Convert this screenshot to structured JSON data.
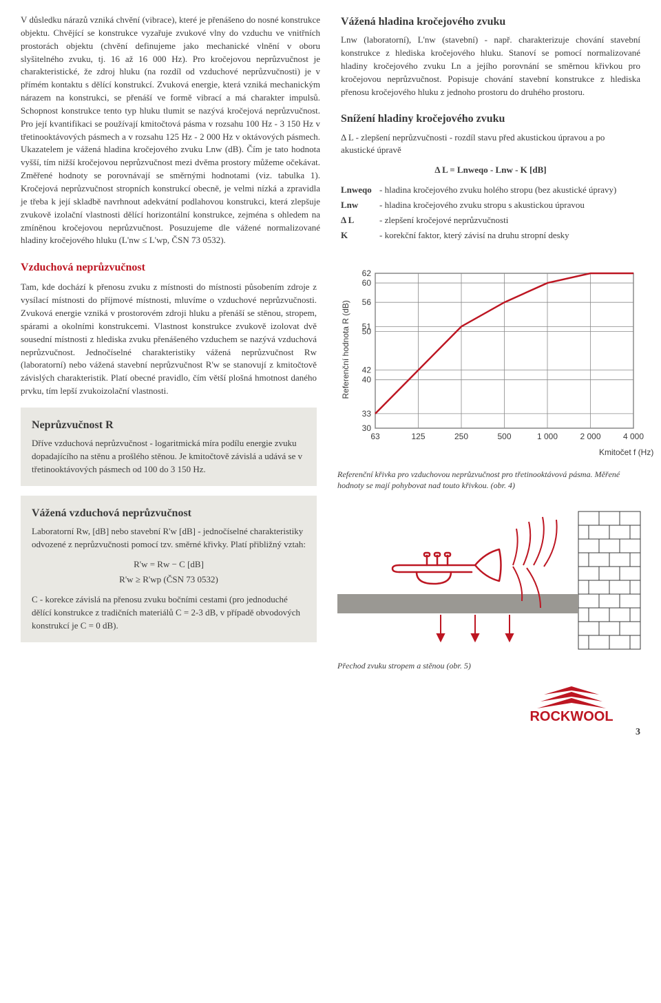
{
  "top_left_para": "V důsledku nárazů vzniká chvění (vibrace), které je přenášeno do nosné konstrukce objektu. Chvějící se konstrukce vyzařuje zvukové vlny do vzduchu ve vnitřních prostorách objektu (chvění definujeme jako mechanické vlnění v oboru slyšitelného zvuku, tj. 16 až 16 000 Hz). Pro kročejovou neprůzvučnost je charakteristické, že zdroj hluku (na rozdíl od vzduchové neprůzvučnosti) je v přímém kontaktu s dělící konstrukcí. Zvuková energie, která vzniká mechanickým nárazem na konstrukci, se přenáší ve formě vibrací a má charakter impulsů. Schopnost konstrukce tento typ hluku tlumit se nazývá kročejová neprůzvučnost. Pro její kvantifikaci se používají kmitočtová pásma v rozsahu 100 Hz - 3 150 Hz v třetinooktávových pásmech a v rozsahu 125 Hz - 2 000 Hz v oktávových pásmech. Ukazatelem je vážená hladina kročejového zvuku Lnw (dB). Čím je tato hodnota vyšší, tím nižší kročejovou neprůzvučnost mezi dvěma prostory můžeme očekávat. Změřené hodnoty se porovnávají se směrnými hodnotami (viz. tabulka 1). Kročejová neprůzvučnost stropních konstrukcí obecně, je velmi nízká a zpravidla je třeba k její skladbě navrhnout adekvátní podlahovou konstrukci, která zlepšuje zvukově izolační vlastnosti dělící horizontální konstrukce, zejména s ohledem na zmíněnou kročejovou neprůzvučnost. Posuzujeme dle vážené normalizované hladiny kročejového hluku (L'nw ≤ L'wp, ČSN 73 0532).",
  "vhkz": {
    "title": "Vážená hladina kročejového zvuku",
    "body": "Lnw (laboratorní), L'nw (stavební) - např. charakterizuje chování stavební konstrukce z hlediska kročejového hluku. Stanoví se pomocí normalizované hladiny kročejového zvuku Ln a jejího porovnání se směrnou křivkou pro kročejovou neprůzvučnost. Popisuje chování stavební konstrukce z hlediska přenosu kročejového hluku z jednoho prostoru do druhého prostoru."
  },
  "shkz": {
    "title": "Snížení hladiny kročejového zvuku",
    "intro": "Δ L - zlepšení neprůzvučnosti - rozdíl stavu před akustickou úpravou a po akustické úpravě",
    "formula": "Δ L = Lnweqo - Lnw - K [dB]",
    "defs": [
      {
        "k": "Lnweqo",
        "v": "- hladina kročejového zvuku holého stropu (bez akustické úpravy)"
      },
      {
        "k": "Lnw",
        "v": "- hladina kročejového zvuku stropu s akustickou úpravou"
      },
      {
        "k": "Δ L",
        "v": "- zlepšení kročejové neprůzvučnosti"
      },
      {
        "k": "K",
        "v": "- korekční faktor, který závisí na druhu stropní desky"
      }
    ]
  },
  "vzdn": {
    "title": "Vzduchová neprůzvučnost",
    "body": "Tam, kde dochází k přenosu zvuku z místnosti do místnosti působením zdroje z vysílací místnosti do příjmové místnosti, mluvíme o vzduchové neprůzvučnosti. Zvuková energie vzniká v prostorovém zdroji hluku a přenáší se stěnou, stropem, spárami a okolními konstrukcemi. Vlastnost konstrukce zvukově izolovat dvě sousední místnosti z hlediska zvuku přenášeného vzduchem se nazývá vzduchová neprůzvučnost. Jednočíselné charakteristiky vážená neprůzvučnost Rw (laboratorní) nebo vážená stavební neprůzvučnost R'w se stanovují z kmitočtově závislých charakteristik. Platí obecné pravidlo, čím větší plošná hmotnost daného prvku, tím lepší zvukoizolační vlastnosti."
  },
  "boxR": {
    "title": "Neprůzvučnost R",
    "body": "Dříve vzduchová neprůzvučnost - logaritmická míra podílu energie zvuku dopadajícího na stěnu a prošlého stěnou. Je kmitočtově závislá a udává se v třetinooktávových pásmech od 100 do 3 150 Hz."
  },
  "boxVVN": {
    "title": "Vážená vzduchová neprůzvučnost",
    "intro": "Laboratorní Rw, [dB] nebo stavební R'w [dB] - jednočíselné charakteristiky odvozené z neprůzvučnosti pomocí tzv. směrné křivky. Platí přibližný vztah:",
    "formula1": "R'w = Rw − C [dB]",
    "formula2": "R'w ≥ R'wp (ČSN 73 0532)",
    "note": "C - korekce závislá na přenosu zvuku bočními cestami (pro jednoduché dělící konstrukce z tradičních materiálů C = 2-3 dB, v případě obvodových konstrukcí je C = 0 dB)."
  },
  "chart": {
    "type": "line",
    "x_ticks": [
      63,
      125,
      250,
      500,
      1000,
      2000,
      4000
    ],
    "x_label": "Kmitočet f (Hz)",
    "y_ticks": [
      30,
      33,
      40,
      42,
      50,
      51,
      56,
      60,
      62
    ],
    "y_label": "Referenční hodnota R (dB)",
    "y_min": 30,
    "y_max": 62,
    "line_color": "#bd1622",
    "line_width": 2.5,
    "grid_color": "#8a8a8a",
    "bg_color": "#ffffff",
    "font_size": 12,
    "points": [
      {
        "x": 63,
        "y": 33
      },
      {
        "x": 125,
        "y": 42
      },
      {
        "x": 250,
        "y": 51
      },
      {
        "x": 500,
        "y": 56
      },
      {
        "x": 1000,
        "y": 60
      },
      {
        "x": 2000,
        "y": 62
      },
      {
        "x": 4000,
        "y": 62
      }
    ],
    "caption": "Referenční křivka pro vzduchovou neprůzvučnost pro třetinooktávová pásma. Měřené hodnoty se mají pohybovat nad touto křivkou. (obr. 4)"
  },
  "illus_caption": "Přechod zvuku stropem a stěnou (obr. 5)",
  "logo_text": "ROCKWOOL",
  "page_num": "3"
}
